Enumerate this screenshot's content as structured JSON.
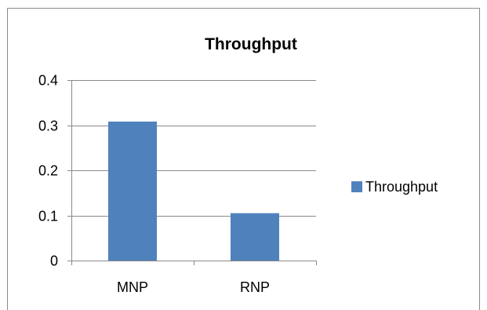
{
  "chart_data": {
    "type": "bar",
    "title": "Throughput",
    "categories": [
      "MNP",
      "RNP"
    ],
    "series": [
      {
        "name": "Throughput",
        "values": [
          0.308,
          0.105
        ],
        "color": "#4F81BD"
      }
    ],
    "ylim": [
      0,
      0.4
    ],
    "yticks": [
      "0",
      "0.1",
      "0.2",
      "0.3",
      "0.4"
    ],
    "grid": true,
    "legend_position": "right"
  }
}
